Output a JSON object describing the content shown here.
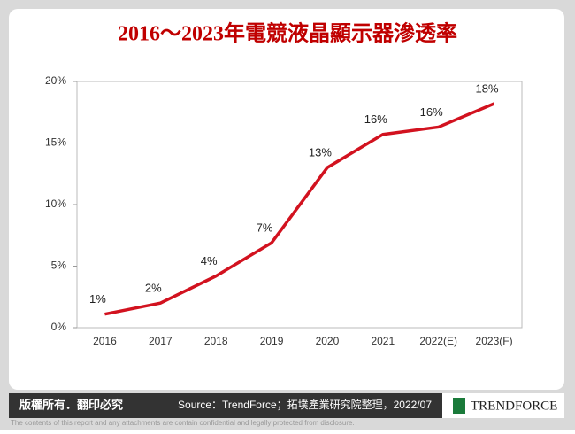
{
  "chart_data": {
    "type": "line",
    "title": "2016～2023年電競液晶顯示器滲透率",
    "categories": [
      "2016",
      "2017",
      "2018",
      "2019",
      "2020",
      "2021",
      "2022(E)",
      "2023(F)"
    ],
    "values": [
      1.1,
      2.0,
      4.2,
      6.9,
      13.0,
      15.7,
      16.3,
      18.2
    ],
    "value_labels": [
      "1%",
      "2%",
      "4%",
      "7%",
      "13%",
      "16%",
      "16%",
      "18%"
    ],
    "color": "#d2121f",
    "ylim": [
      0,
      20
    ],
    "yticks": [
      {
        "value": 0,
        "label": "0%"
      },
      {
        "value": 5,
        "label": "5%"
      },
      {
        "value": 10,
        "label": "10%"
      },
      {
        "value": 15,
        "label": "15%"
      },
      {
        "value": 20,
        "label": "20%"
      }
    ]
  },
  "footer": {
    "rights": "版權所有．翻印必究",
    "source": "Source：TrendForce；拓墣產業研究院整理，2022/07",
    "logo": "TRENDFORCE",
    "disclaimer": "The contents of this report and any attachments are contain confidential and legally protected from disclosure."
  }
}
